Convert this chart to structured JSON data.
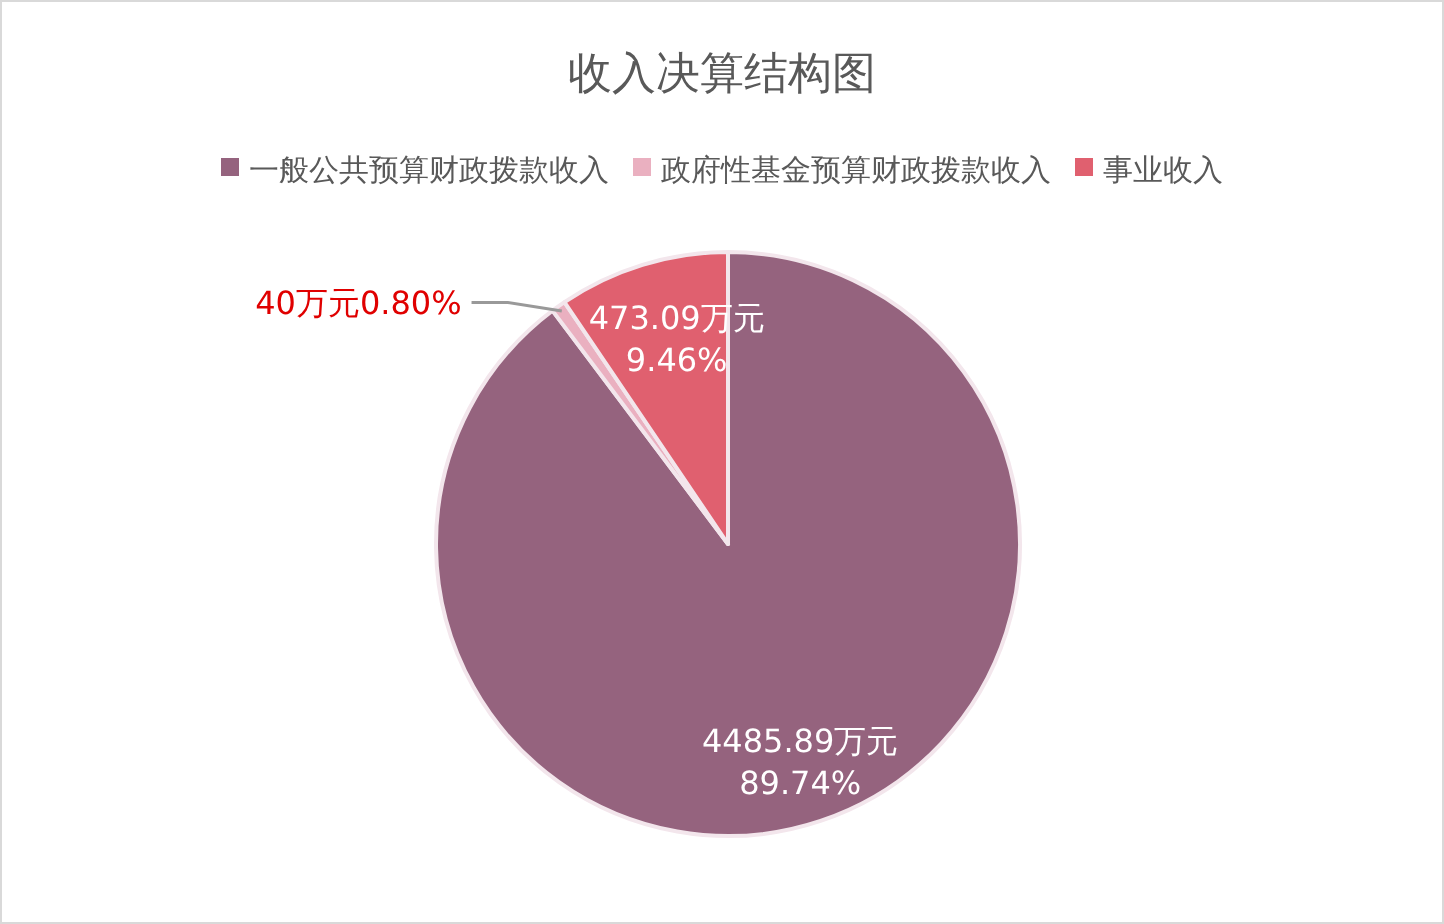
{
  "chart_data": {
    "type": "pie",
    "title": "收入决算结构图",
    "categories": [
      "一般公共预算财政拨款收入",
      "政府性基金预算财政拨款收入",
      "事业收入"
    ],
    "values": [
      4485.89,
      40,
      473.09
    ],
    "colors": [
      "#95637e",
      "#eab0c0",
      "#e0606f"
    ],
    "value_labels": [
      "4485.89万元\n89.74%",
      "40万元0.80%",
      "473.09万元\n9.46%"
    ],
    "legend": "top"
  }
}
